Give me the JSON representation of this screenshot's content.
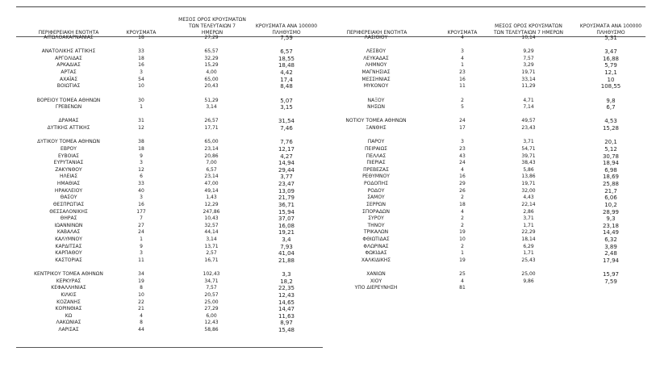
{
  "headers": {
    "region": "ΠΕΡΙΦΕΡΕΙΑΚΗ ΕΝΟΤΗΤΑ",
    "cases": "ΚΡΟΥΣΜΑΤΑ",
    "mean7": "ΜΕΣΟΣ ΟΡΟΣ ΚΡΟΥΣΜΑΤΩΝ ΤΩΝ ΤΕΛΕΥΤΑΙΩΝ 7 ΗΜΕΡΩΝ",
    "per100k": "ΚΡΟΥΣΜΑΤΑ ΑΝΑ 100000 ΠΛΗΘΥΣΜΟ"
  },
  "left_rows": [
    [
      "ΑΙΤΩΛΟΑΚΑΡΝΑΝΙΑΣ",
      "18",
      "27,29",
      "7,59"
    ],
    null,
    [
      "ΑΝΑΤΟΛΙΚΗΣ ΑΤΤΙΚΗΣ",
      "33",
      "65,57",
      "6,57"
    ],
    [
      "ΑΡΓΟΛΙΔΑΣ",
      "18",
      "32,29",
      "18,55"
    ],
    [
      "ΑΡΚΑΔΙΑΣ",
      "16",
      "15,29",
      "18,48"
    ],
    [
      "ΑΡΤΑΣ",
      "3",
      "4,00",
      "4,42"
    ],
    [
      "ΑΧΑΪΑΣ",
      "54",
      "65,00",
      "17,4"
    ],
    [
      "ΒΟΙΩΤΙΑΣ",
      "10",
      "20,43",
      "8,48"
    ],
    null,
    [
      "ΒΟΡΕΙΟΥ ΤΟΜΕΑ ΑΘΗΝΩΝ",
      "30",
      "51,29",
      "5,07"
    ],
    [
      "ΓΡΕΒΕΝΩΝ",
      "1",
      "3,14",
      "3,15"
    ],
    null,
    [
      "ΔΡΑΜΑΣ",
      "31",
      "26,57",
      "31,54"
    ],
    [
      "ΔΥΤΙΚΗΣ ΑΤΤΙΚΗΣ",
      "12",
      "17,71",
      "7,46"
    ],
    null,
    [
      "ΔΥΤΙΚΟΥ ΤΟΜΕΑ ΑΘΗΝΩΝ",
      "38",
      "65,00",
      "7,76"
    ],
    [
      "ΕΒΡΟΥ",
      "18",
      "23,14",
      "12,17"
    ],
    [
      "ΕΥΒΟΙΑΣ",
      "9",
      "20,86",
      "4,27"
    ],
    [
      "ΕΥΡΥΤΑΝΙΑΣ",
      "3",
      "7,00",
      "14,94"
    ],
    [
      "ΖΑΚΥΝΘΟΥ",
      "12",
      "6,57",
      "29,44"
    ],
    [
      "ΗΛΕΙΑΣ",
      "6",
      "23,14",
      "3,77"
    ],
    [
      "ΗΜΑΘΙΑΣ",
      "33",
      "47,00",
      "23,47"
    ],
    [
      "ΗΡΑΚΛΕΙΟΥ",
      "40",
      "49,14",
      "13,09"
    ],
    [
      "ΘΑΣΟΥ",
      "3",
      "1,43",
      "21,79"
    ],
    [
      "ΘΕΣΠΡΩΤΙΑΣ",
      "16",
      "12,29",
      "36,71"
    ],
    [
      "ΘΕΣΣΑΛΟΝΙΚΗΣ",
      "177",
      "247,86",
      "15,94"
    ],
    [
      "ΘΗΡΑΣ",
      "7",
      "10,43",
      "37,07"
    ],
    [
      "ΙΩΑΝΝΙΝΩΝ",
      "27",
      "32,57",
      "16,08"
    ],
    [
      "ΚΑΒΑΛΑΣ",
      "24",
      "44,14",
      "19,21"
    ],
    [
      "ΚΑΛΥΜΝΟΥ",
      "1",
      "3,14",
      "3,4"
    ],
    [
      "ΚΑΡΔΙΤΣΑΣ",
      "9",
      "13,71",
      "7,93"
    ],
    [
      "ΚΑΡΠΑΘΟΥ",
      "3",
      "2,57",
      "41,04"
    ],
    [
      "ΚΑΣΤΟΡΙΑΣ",
      "11",
      "16,71",
      "21,88"
    ],
    null,
    [
      "ΚΕΝΤΡΙΚΟΥ ΤΟΜΕΑ ΑΘΗΝΩΝ",
      "34",
      "102,43",
      "3,3"
    ],
    [
      "ΚΕΡΚΥΡΑΣ",
      "19",
      "34,71",
      "18,2"
    ],
    [
      "ΚΕΦΑΛΛΗΝΙΑΣ",
      "8",
      "7,57",
      "22,35"
    ],
    [
      "ΚΙΛΚΙΣ",
      "10",
      "20,57",
      "12,43"
    ],
    [
      "ΚΟΖΑΝΗΣ",
      "22",
      "25,00",
      "14,65"
    ],
    [
      "ΚΟΡΙΝΘΙΑΣ",
      "21",
      "27,29",
      "14,47"
    ],
    [
      "ΚΩ",
      "4",
      "6,00",
      "11,63"
    ],
    [
      "ΛΑΚΩΝΙΑΣ",
      "8",
      "12,43",
      "8,97"
    ],
    [
      "ΛΑΡΙΣΑΣ",
      "44",
      "58,86",
      "15,48"
    ]
  ],
  "right_rows": [
    [
      "ΛΑΣΙΘΙΟΥ",
      "4",
      "10,14",
      "5,31"
    ],
    null,
    [
      "ΛΕΣΒΟΥ",
      "3",
      "9,29",
      "3,47"
    ],
    [
      "ΛΕΥΚΑΔΑΣ",
      "4",
      "7,57",
      "16,88"
    ],
    [
      "ΛΗΜΝΟΥ",
      "1",
      "3,29",
      "5,79"
    ],
    [
      "ΜΑΓΝΗΣΙΑΣ",
      "23",
      "19,71",
      "12,1"
    ],
    [
      "ΜΕΣΣΗΝΙΑΣ",
      "16",
      "33,14",
      "10"
    ],
    [
      "ΜΥΚΟΝΟΥ",
      "11",
      "11,29",
      "108,55"
    ],
    null,
    [
      "ΝΑΞΟΥ",
      "2",
      "4,71",
      "9,8"
    ],
    [
      "ΝΗΣΩΝ",
      "5",
      "7,14",
      "6,7"
    ],
    null,
    [
      "ΝΟΤΙΟΥ ΤΟΜΕΑ ΑΘΗΝΩΝ",
      "24",
      "49,57",
      "4,53"
    ],
    [
      "ΞΑΝΘΗΣ",
      "17",
      "23,43",
      "15,28"
    ],
    null,
    [
      "ΠΑΡΟΥ",
      "3",
      "3,71",
      "20,1"
    ],
    [
      "ΠΕΙΡΑΙΩΣ",
      "23",
      "54,71",
      "5,12"
    ],
    [
      "ΠΕΛΛΑΣ",
      "43",
      "39,71",
      "30,78"
    ],
    [
      "ΠΙΕΡΙΑΣ",
      "24",
      "38,43",
      "18,94"
    ],
    [
      "ΠΡΕΒΕΖΑΣ",
      "4",
      "5,86",
      "6,98"
    ],
    [
      "ΡΕΘΥΜΝΟΥ",
      "16",
      "13,86",
      "18,69"
    ],
    [
      "ΡΟΔΟΠΗΣ",
      "29",
      "19,71",
      "25,88"
    ],
    [
      "ΡΟΔΟΥ",
      "26",
      "32,00",
      "21,7"
    ],
    [
      "ΣΑΜΟΥ",
      "2",
      "4,43",
      "6,06"
    ],
    [
      "ΣΕΡΡΩΝ",
      "18",
      "22,14",
      "10,2"
    ],
    [
      "ΣΠΟΡΑΔΩΝ",
      "4",
      "2,86",
      "28,99"
    ],
    [
      "ΣΥΡΟΥ",
      "2",
      "3,71",
      "9,3"
    ],
    [
      "ΤΗΝΟΥ",
      "2",
      "1,71",
      "23,18"
    ],
    [
      "ΤΡΙΚΑΛΩΝ",
      "19",
      "22,29",
      "14,49"
    ],
    [
      "ΦΘΙΩΤΙΔΑΣ",
      "10",
      "18,14",
      "6,32"
    ],
    [
      "ΦΛΩΡΙΝΑΣ",
      "2",
      "6,29",
      "3,89"
    ],
    [
      "ΦΩΚΙΔΑΣ",
      "1",
      "1,71",
      "2,48"
    ],
    [
      "ΧΑΛΚΙΔΙΚΗΣ",
      "19",
      "25,43",
      "17,94"
    ],
    null,
    [
      "ΧΑΝΙΩΝ",
      "25",
      "25,00",
      "15,97"
    ],
    [
      "ΧΙΟΥ",
      "4",
      "9,86",
      "7,59"
    ],
    [
      "ΥΠΟ ΔΙΕΡΕΥΝΗΣΗ",
      "81",
      "",
      ""
    ]
  ]
}
